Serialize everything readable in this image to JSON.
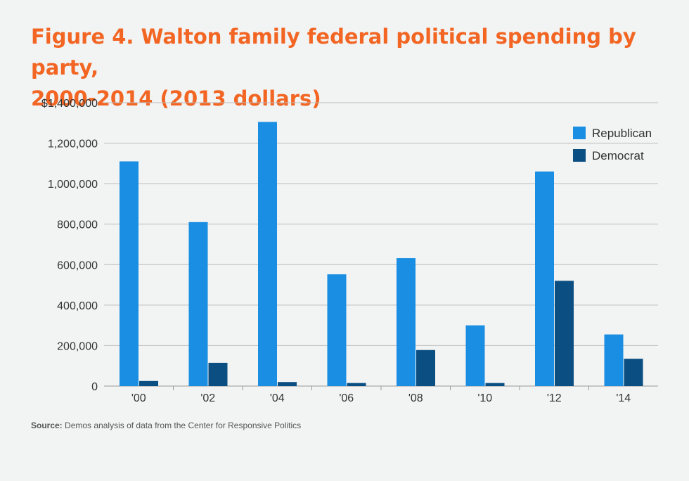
{
  "title_line1": "Figure 4. Walton family federal political spending by party,",
  "title_line2": "2000-2014 (2013 dollars)",
  "source_label": "Source:",
  "source_text": "Demos analysis of data from the Center for Responsive Politics",
  "colors": {
    "republican": "#1a8ee3",
    "democrat": "#0b4f82",
    "title": "#f26522",
    "background": "#f2f3f3",
    "grid": "#bdbdbd"
  },
  "chart_data": {
    "type": "bar",
    "title": "Figure 4. Walton family federal political spending by party, 2000-2014 (2013 dollars)",
    "xlabel": "",
    "ylabel": "",
    "categories": [
      "'00",
      "'02",
      "'04",
      "'06",
      "'08",
      "'10",
      "'12",
      "'14"
    ],
    "series": [
      {
        "name": "Republican",
        "values": [
          1110000,
          810000,
          1305000,
          552000,
          632000,
          300000,
          1060000,
          255000
        ]
      },
      {
        "name": "Democrat",
        "values": [
          25000,
          115000,
          20000,
          15000,
          178000,
          15000,
          520000,
          135000
        ]
      }
    ],
    "ylim": [
      0,
      1400000
    ],
    "y_ticks": [
      "0",
      "200,000",
      "400,000",
      "600,000",
      "800,000",
      "1,000,000",
      "1,200,000",
      "$1,400,000"
    ],
    "grid": true,
    "legend_position": "top-right"
  }
}
